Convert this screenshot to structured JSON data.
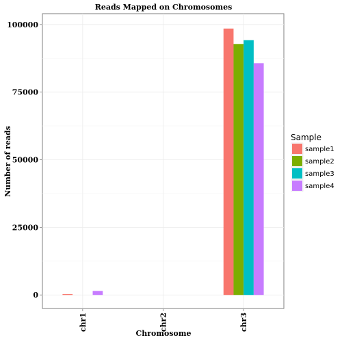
{
  "chart_data": {
    "type": "bar",
    "title": "Reads Mapped on Chromosomes",
    "xlabel": "Chromosome",
    "ylabel": "Number of reads",
    "categories": [
      "chr1",
      "chr2",
      "chr3"
    ],
    "series": [
      {
        "name": "sample1",
        "values": [
          300,
          0,
          98500
        ],
        "color": "#F8766D"
      },
      {
        "name": "sample2",
        "values": [
          0,
          0,
          92800
        ],
        "color": "#7CAE00"
      },
      {
        "name": "sample3",
        "values": [
          0,
          0,
          94200
        ],
        "color": "#00BFC4"
      },
      {
        "name": "sample4",
        "values": [
          1500,
          0,
          85700
        ],
        "color": "#C77CFF"
      }
    ],
    "yticks": [
      0,
      25000,
      50000,
      75000,
      100000
    ],
    "ytick_labels": [
      "0",
      "25000",
      "50000",
      "75000",
      "100000"
    ],
    "ylim": [
      -5000,
      104000
    ],
    "grid": true,
    "legend": {
      "title": "Sample",
      "position": "right"
    }
  }
}
